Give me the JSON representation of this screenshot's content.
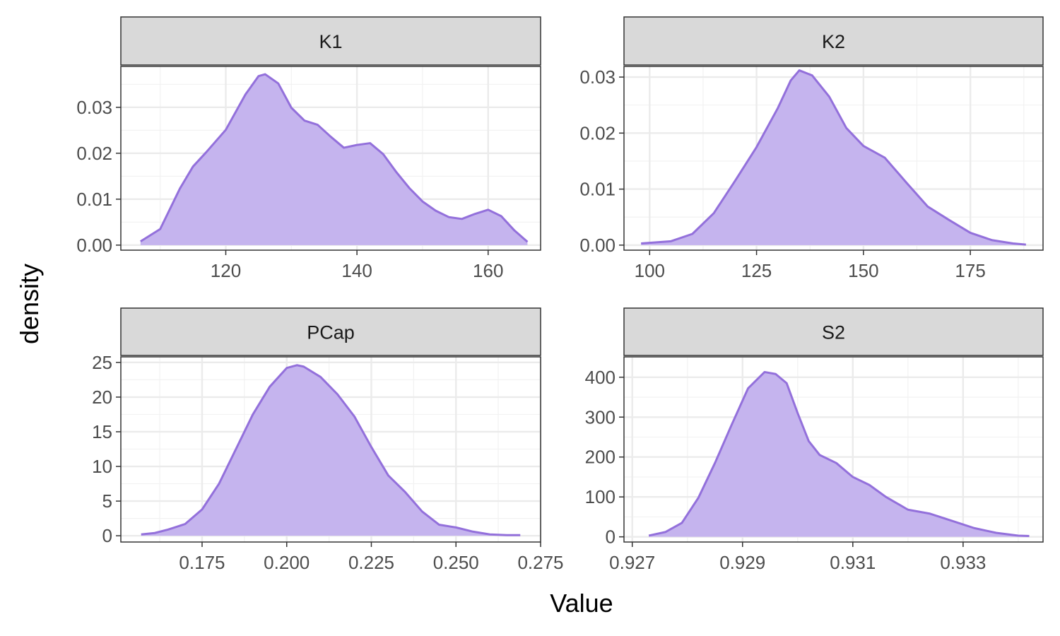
{
  "chart_data": {
    "type": "area",
    "layout": "facet-2x2",
    "xlabel": "Value",
    "ylabel": "density",
    "colors": {
      "fill": "#c5b4ee",
      "line": "#9370db",
      "strip": "#d9d9d9",
      "grid": "#ebebeb",
      "border": "#333333"
    },
    "panels": [
      {
        "name": "K1",
        "xlim": [
          104,
          168
        ],
        "ylim": [
          -0.0011,
          0.0389
        ],
        "xticks": [
          120,
          140,
          160
        ],
        "xtick_labels": [
          "120",
          "140",
          "160"
        ],
        "yticks": [
          0,
          0.01,
          0.02,
          0.03
        ],
        "ytick_labels": [
          "0.00",
          "0.01",
          "0.02",
          "0.03"
        ],
        "x": [
          107,
          110,
          113,
          115,
          117,
          120,
          123,
          125,
          126,
          128,
          130,
          132,
          134,
          136,
          138,
          140,
          142,
          144,
          146,
          148,
          150,
          152,
          154,
          156,
          158,
          160,
          162,
          164,
          166
        ],
        "y": [
          0.0008,
          0.0035,
          0.0123,
          0.0171,
          0.0202,
          0.0251,
          0.0328,
          0.0368,
          0.0372,
          0.0352,
          0.0299,
          0.0271,
          0.0262,
          0.0236,
          0.0212,
          0.0218,
          0.0222,
          0.0198,
          0.0159,
          0.0124,
          0.0095,
          0.0075,
          0.0061,
          0.0057,
          0.0068,
          0.0077,
          0.0063,
          0.0032,
          0.0007
        ]
      },
      {
        "name": "K2",
        "xlim": [
          94,
          192
        ],
        "ylim": [
          -0.0009,
          0.0319
        ],
        "xticks": [
          100,
          125,
          150,
          175
        ],
        "xtick_labels": [
          "100",
          "125",
          "150",
          "175"
        ],
        "yticks": [
          0,
          0.01,
          0.02,
          0.03
        ],
        "ytick_labels": [
          "0.00",
          "0.01",
          "0.02",
          "0.03"
        ],
        "x": [
          98,
          105,
          110,
          115,
          120,
          125,
          130,
          133,
          135,
          138,
          142,
          146,
          150,
          155,
          160,
          165,
          170,
          175,
          180,
          185,
          188
        ],
        "y": [
          0.0003,
          0.0007,
          0.002,
          0.0057,
          0.0115,
          0.0175,
          0.0245,
          0.0294,
          0.0312,
          0.0303,
          0.0265,
          0.0209,
          0.0177,
          0.0156,
          0.0112,
          0.0069,
          0.0045,
          0.0022,
          0.0009,
          0.0003,
          0.0001
        ]
      },
      {
        "name": "PCap",
        "xlim": [
          0.151,
          0.275
        ],
        "ylim": [
          -0.9,
          25.8
        ],
        "xticks": [
          0.175,
          0.2,
          0.225,
          0.25,
          0.275
        ],
        "xtick_labels": [
          "0.175",
          "0.200",
          "0.225",
          "0.250",
          "0.275"
        ],
        "yticks": [
          0,
          5,
          10,
          15,
          20,
          25
        ],
        "ytick_labels": [
          "0",
          "5",
          "10",
          "15",
          "20",
          "25"
        ],
        "x": [
          0.157,
          0.161,
          0.165,
          0.17,
          0.175,
          0.18,
          0.185,
          0.19,
          0.195,
          0.2,
          0.203,
          0.205,
          0.21,
          0.215,
          0.22,
          0.225,
          0.23,
          0.235,
          0.24,
          0.245,
          0.25,
          0.255,
          0.26,
          0.265,
          0.269
        ],
        "y": [
          0.2,
          0.4,
          0.9,
          1.7,
          3.8,
          7.5,
          12.5,
          17.5,
          21.5,
          24.2,
          24.6,
          24.4,
          22.9,
          20.4,
          17.2,
          12.8,
          8.7,
          6.3,
          3.5,
          1.6,
          1.2,
          0.6,
          0.2,
          0.1,
          0.1
        ]
      },
      {
        "name": "S2",
        "xlim": [
          0.92685,
          0.93445
        ],
        "ylim": [
          -13,
          451
        ],
        "xticks": [
          0.927,
          0.929,
          0.931,
          0.933
        ],
        "xtick_labels": [
          "0.927",
          "0.929",
          "0.931",
          "0.933"
        ],
        "yticks": [
          0,
          100,
          200,
          300,
          400
        ],
        "ytick_labels": [
          "0",
          "100",
          "200",
          "300",
          "400"
        ],
        "x": [
          0.9273,
          0.9276,
          0.9279,
          0.9282,
          0.9285,
          0.9288,
          0.9291,
          0.9294,
          0.9296,
          0.9298,
          0.93,
          0.9302,
          0.9304,
          0.9307,
          0.931,
          0.9313,
          0.9316,
          0.932,
          0.9324,
          0.9328,
          0.9332,
          0.9336,
          0.934,
          0.9342
        ],
        "y": [
          3,
          12,
          35,
          98,
          185,
          280,
          372,
          413,
          408,
          385,
          310,
          240,
          205,
          185,
          150,
          130,
          100,
          68,
          58,
          40,
          22,
          10,
          3,
          2
        ]
      }
    ]
  }
}
